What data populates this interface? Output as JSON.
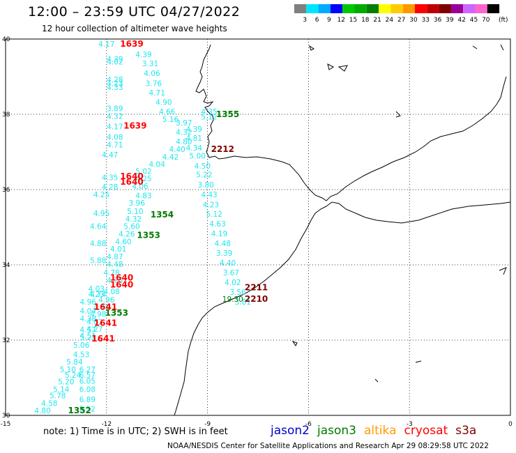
{
  "header": {
    "title": "12:00 – 23:59 UTC 04/27/2022",
    "subtitle": "12 hour collection of altimeter wave heights"
  },
  "legend": {
    "unit": "(ft)",
    "bins": [
      {
        "label": "3",
        "color": "#7f7f7f"
      },
      {
        "label": "6",
        "color": "#00e5ff"
      },
      {
        "label": "9",
        "color": "#00aaff"
      },
      {
        "label": "12",
        "color": "#0000ff"
      },
      {
        "label": "15",
        "color": "#00c800"
      },
      {
        "label": "18",
        "color": "#00aa00"
      },
      {
        "label": "21",
        "color": "#008000"
      },
      {
        "label": "24",
        "color": "#ffff00"
      },
      {
        "label": "27",
        "color": "#ffcc00"
      },
      {
        "label": "30",
        "color": "#ff9900"
      },
      {
        "label": "33",
        "color": "#ff0000"
      },
      {
        "label": "36",
        "color": "#c00000"
      },
      {
        "label": "39",
        "color": "#800000"
      },
      {
        "label": "42",
        "color": "#990099"
      },
      {
        "label": "45",
        "color": "#cc66ff"
      },
      {
        "label": "70",
        "color": "#ff66cc"
      },
      {
        "label": "",
        "color": "#000000"
      }
    ]
  },
  "axes": {
    "lon_ticks": [
      "-15",
      "-12",
      "-9",
      "-6",
      "-3",
      "0"
    ],
    "lat_ticks": [
      "40",
      "38",
      "36",
      "34",
      "32",
      "30"
    ]
  },
  "chart_data": {
    "type": "scatter",
    "x_axis": "longitude",
    "y_axis": "latitude",
    "xlim": [
      -15,
      0
    ],
    "ylim": [
      30,
      40
    ],
    "grid": true,
    "swh_labels": [
      {
        "lon": -12.0,
        "lat": 39.8,
        "v": "4.17"
      },
      {
        "lon": -11.75,
        "lat": 39.4,
        "v": "4.39"
      },
      {
        "lon": -11.75,
        "lat": 39.32,
        "v": "4.02"
      },
      {
        "lon": -11.75,
        "lat": 38.85,
        "v": "4.28"
      },
      {
        "lon": -11.75,
        "lat": 38.75,
        "v": "4.23"
      },
      {
        "lon": -11.75,
        "lat": 38.65,
        "v": "4.33"
      },
      {
        "lon": -11.75,
        "lat": 38.08,
        "v": "3.89"
      },
      {
        "lon": -11.75,
        "lat": 37.88,
        "v": "4.32"
      },
      {
        "lon": -11.75,
        "lat": 37.6,
        "v": "4.17"
      },
      {
        "lon": -11.75,
        "lat": 37.32,
        "v": "4.08"
      },
      {
        "lon": -11.75,
        "lat": 37.12,
        "v": "4.71"
      },
      {
        "lon": -11.9,
        "lat": 36.85,
        "v": "4.47"
      },
      {
        "lon": -11.9,
        "lat": 36.25,
        "v": "4.35"
      },
      {
        "lon": -11.9,
        "lat": 36.0,
        "v": "4.28"
      },
      {
        "lon": -12.15,
        "lat": 35.8,
        "v": "4.25"
      },
      {
        "lon": -12.15,
        "lat": 35.3,
        "v": "4.95"
      },
      {
        "lon": -12.25,
        "lat": 34.95,
        "v": "4.64"
      },
      {
        "lon": -12.25,
        "lat": 34.5,
        "v": "4.88"
      },
      {
        "lon": -12.25,
        "lat": 34.05,
        "v": "5.88"
      },
      {
        "lon": -12.3,
        "lat": 33.3,
        "v": "4.03"
      },
      {
        "lon": -12.3,
        "lat": 33.15,
        "v": "4.23"
      },
      {
        "lon": -12.25,
        "lat": 33.15,
        "v": "4.74"
      },
      {
        "lon": -12.55,
        "lat": 32.94,
        "v": "4.96"
      },
      {
        "lon": -12.55,
        "lat": 32.7,
        "v": "4.04"
      },
      {
        "lon": -12.55,
        "lat": 32.5,
        "v": "4.38"
      },
      {
        "lon": -12.55,
        "lat": 32.2,
        "v": "4.57"
      },
      {
        "lon": -12.55,
        "lat": 32.0,
        "v": "5.23"
      },
      {
        "lon": -12.75,
        "lat": 31.8,
        "v": "5.06"
      },
      {
        "lon": -12.75,
        "lat": 31.55,
        "v": "4.53"
      },
      {
        "lon": -12.95,
        "lat": 31.35,
        "v": "5.84"
      },
      {
        "lon": -13.15,
        "lat": 31.15,
        "v": "5.10"
      },
      {
        "lon": -13.0,
        "lat": 31.0,
        "v": "5.24"
      },
      {
        "lon": -13.2,
        "lat": 30.82,
        "v": "5.20"
      },
      {
        "lon": -13.35,
        "lat": 30.62,
        "v": "5.14"
      },
      {
        "lon": -13.45,
        "lat": 30.45,
        "v": "5.78"
      },
      {
        "lon": -13.7,
        "lat": 30.25,
        "v": "4.58"
      },
      {
        "lon": -13.9,
        "lat": 30.06,
        "v": "4.80"
      },
      {
        "lon": -12.57,
        "lat": 30.62,
        "v": "6.08"
      },
      {
        "lon": -12.57,
        "lat": 30.84,
        "v": "6.05"
      },
      {
        "lon": -12.57,
        "lat": 31.0,
        "v": "6.57"
      },
      {
        "lon": -12.57,
        "lat": 31.15,
        "v": "6.27"
      },
      {
        "lon": -12.57,
        "lat": 30.35,
        "v": "6.89"
      },
      {
        "lon": -12.57,
        "lat": 30.1,
        "v": "5.52"
      },
      {
        "lon": -10.9,
        "lat": 39.52,
        "v": "4.39"
      },
      {
        "lon": -10.7,
        "lat": 39.28,
        "v": "3.31"
      },
      {
        "lon": -10.65,
        "lat": 39.02,
        "v": "4.06"
      },
      {
        "lon": -10.6,
        "lat": 38.75,
        "v": "3.76"
      },
      {
        "lon": -10.5,
        "lat": 38.5,
        "v": "4.71"
      },
      {
        "lon": -10.3,
        "lat": 38.25,
        "v": "4.90"
      },
      {
        "lon": -10.2,
        "lat": 38.0,
        "v": "4.66"
      },
      {
        "lon": -10.1,
        "lat": 37.8,
        "v": "5.16"
      },
      {
        "lon": -9.7,
        "lat": 37.7,
        "v": "3.97"
      },
      {
        "lon": -9.7,
        "lat": 37.45,
        "v": "4.32"
      },
      {
        "lon": -9.7,
        "lat": 37.2,
        "v": "4.80"
      },
      {
        "lon": -9.9,
        "lat": 37.0,
        "v": "4.40"
      },
      {
        "lon": -10.1,
        "lat": 36.8,
        "v": "4.42"
      },
      {
        "lon": -10.5,
        "lat": 36.6,
        "v": "4.04"
      },
      {
        "lon": -10.9,
        "lat": 36.42,
        "v": "5.02"
      },
      {
        "lon": -10.9,
        "lat": 36.22,
        "v": "4.25"
      },
      {
        "lon": -11.0,
        "lat": 36.02,
        "v": "4.06"
      },
      {
        "lon": -10.9,
        "lat": 35.77,
        "v": "4.83"
      },
      {
        "lon": -11.1,
        "lat": 35.57,
        "v": "3.96"
      },
      {
        "lon": -11.15,
        "lat": 35.35,
        "v": "5.10"
      },
      {
        "lon": -11.2,
        "lat": 35.15,
        "v": "4.32"
      },
      {
        "lon": -11.25,
        "lat": 34.95,
        "v": "5.60"
      },
      {
        "lon": -11.4,
        "lat": 34.75,
        "v": "4.26"
      },
      {
        "lon": -11.5,
        "lat": 34.55,
        "v": "4.60"
      },
      {
        "lon": -11.65,
        "lat": 34.35,
        "v": "4.01"
      },
      {
        "lon": -11.75,
        "lat": 34.15,
        "v": "4.87"
      },
      {
        "lon": -11.75,
        "lat": 33.94,
        "v": "4.48"
      },
      {
        "lon": -11.85,
        "lat": 33.72,
        "v": "4.78"
      },
      {
        "lon": -11.75,
        "lat": 33.52,
        "v": "4.75"
      },
      {
        "lon": -11.85,
        "lat": 33.22,
        "v": "4.08"
      },
      {
        "lon": -12.0,
        "lat": 33.0,
        "v": "4.96"
      },
      {
        "lon": -12.15,
        "lat": 32.8,
        "v": "4.31"
      },
      {
        "lon": -12.25,
        "lat": 32.62,
        "v": "4.98"
      },
      {
        "lon": -12.35,
        "lat": 32.42,
        "v": "4.62"
      },
      {
        "lon": -12.35,
        "lat": 32.22,
        "v": "4.27"
      },
      {
        "lon": -12.55,
        "lat": 32.05,
        "v": "4.51"
      },
      {
        "lon": -8.95,
        "lat": 38.0,
        "v": "4.35"
      },
      {
        "lon": -8.95,
        "lat": 37.86,
        "v": "5.12"
      },
      {
        "lon": -9.4,
        "lat": 37.54,
        "v": "4.39"
      },
      {
        "lon": -9.4,
        "lat": 37.3,
        "v": "4.81"
      },
      {
        "lon": -9.4,
        "lat": 37.04,
        "v": "4.34"
      },
      {
        "lon": -9.3,
        "lat": 36.82,
        "v": "5.00"
      },
      {
        "lon": -9.15,
        "lat": 36.56,
        "v": "4.50"
      },
      {
        "lon": -9.1,
        "lat": 36.32,
        "v": "5.22"
      },
      {
        "lon": -9.05,
        "lat": 36.06,
        "v": "3.80"
      },
      {
        "lon": -8.95,
        "lat": 35.8,
        "v": "4.43"
      },
      {
        "lon": -8.9,
        "lat": 35.53,
        "v": "4.23"
      },
      {
        "lon": -8.8,
        "lat": 35.28,
        "v": "5.12"
      },
      {
        "lon": -8.7,
        "lat": 35.02,
        "v": "4.63"
      },
      {
        "lon": -8.65,
        "lat": 34.76,
        "v": "4.19"
      },
      {
        "lon": -8.55,
        "lat": 34.5,
        "v": "4.48"
      },
      {
        "lon": -8.5,
        "lat": 34.24,
        "v": "3.39"
      },
      {
        "lon": -8.4,
        "lat": 33.98,
        "v": "4.40"
      },
      {
        "lon": -8.3,
        "lat": 33.72,
        "v": "3.67"
      },
      {
        "lon": -8.25,
        "lat": 33.46,
        "v": "4.02"
      },
      {
        "lon": -8.1,
        "lat": 33.2,
        "v": "3.56"
      },
      {
        "lon": -7.95,
        "lat": 32.94,
        "v": "3.81"
      }
    ],
    "tracks": [
      {
        "satellite": "cryosat",
        "time": "1639",
        "lon": -11.25,
        "lat": 39.8,
        "color": "#ff0000"
      },
      {
        "satellite": "cryosat",
        "time": "1639",
        "lon": -11.15,
        "lat": 37.62,
        "color": "#ff0000"
      },
      {
        "satellite": "cryosat",
        "time": "1640",
        "lon": -11.25,
        "lat": 36.28,
        "color": "#ff0000"
      },
      {
        "satellite": "cryosat",
        "time": "1640",
        "lon": -11.25,
        "lat": 36.13,
        "color": "#ff0000"
      },
      {
        "satellite": "cryosat",
        "time": "1640",
        "lon": -11.55,
        "lat": 33.58,
        "color": "#ff0000"
      },
      {
        "satellite": "cryosat",
        "time": "1640",
        "lon": -11.55,
        "lat": 33.4,
        "color": "#ff0000"
      },
      {
        "satellite": "cryosat",
        "time": "1641",
        "lon": -12.03,
        "lat": 32.81,
        "color": "#ff0000"
      },
      {
        "satellite": "cryosat",
        "time": "1641",
        "lon": -12.03,
        "lat": 32.38,
        "color": "#ff0000"
      },
      {
        "satellite": "cryosat",
        "time": "1641",
        "lon": -12.1,
        "lat": 31.96,
        "color": "#ff0000"
      },
      {
        "satellite": "jason3",
        "time": "1355",
        "lon": -8.4,
        "lat": 37.93,
        "color": "#007a00"
      },
      {
        "satellite": "jason3",
        "time": "1354",
        "lon": -10.35,
        "lat": 35.26,
        "color": "#007a00"
      },
      {
        "satellite": "jason3",
        "time": "1353",
        "lon": -10.75,
        "lat": 34.71,
        "color": "#007a00"
      },
      {
        "satellite": "jason3",
        "time": "1353",
        "lon": -11.7,
        "lat": 32.65,
        "color": "#007a00"
      },
      {
        "satellite": "jason3",
        "time": "1352",
        "lon": -12.8,
        "lat": 30.06,
        "color": "#007a00"
      },
      {
        "satellite": "s3a",
        "time": "2212",
        "lon": -8.55,
        "lat": 37.0,
        "color": "#800000"
      },
      {
        "satellite": "s3a",
        "time": "2211",
        "lon": -7.55,
        "lat": 33.32,
        "color": "#800000"
      },
      {
        "satellite": "s3a",
        "time": "2210",
        "lon": -7.55,
        "lat": 33.02,
        "color": "#800000"
      }
    ],
    "extra_values": [
      {
        "lon": -8.25,
        "lat": 33.02,
        "v": "19.30",
        "color": "#007a00"
      }
    ]
  },
  "footer": {
    "note": "note: 1) Time is in UTC; 2) SWH is in feet",
    "satellites": [
      {
        "name": "jason2",
        "color": "#0000cc"
      },
      {
        "name": "jason3",
        "color": "#007a00"
      },
      {
        "name": "altika",
        "color": "#ff9900"
      },
      {
        "name": "cryosat",
        "color": "#ff0000"
      },
      {
        "name": "s3a",
        "color": "#800000"
      }
    ],
    "credit": "NOAA/NESDIS Center for Satellite Applications and Research   Apr 29 08:29:58 UTC 2022"
  }
}
